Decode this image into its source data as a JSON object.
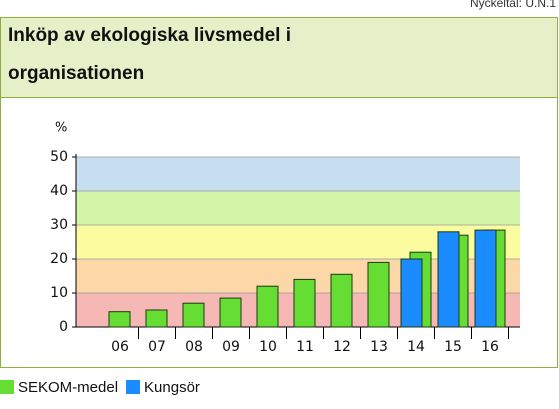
{
  "top_note": "Nyckeltal: U.N.1",
  "chart_data": {
    "type": "bar",
    "title": "Inköp av ekologiska livsmedel i organisationen",
    "y_label": "%",
    "categories": [
      "06",
      "07",
      "08",
      "09",
      "10",
      "11",
      "12",
      "13",
      "14",
      "15",
      "16"
    ],
    "series": [
      {
        "name": "SEKOM-medel",
        "color": "#66dd33",
        "values": [
          4.5,
          5,
          7,
          8.5,
          12,
          14,
          15.5,
          19,
          22,
          27,
          28.5
        ]
      },
      {
        "name": "Kungsör",
        "color": "#1a8cff",
        "values": [
          null,
          null,
          null,
          null,
          null,
          null,
          null,
          null,
          20,
          28,
          28.5
        ]
      }
    ],
    "ylim": [
      0,
      50
    ],
    "yticks": [
      0,
      10,
      20,
      30,
      40,
      50
    ],
    "bands": [
      {
        "from": 0,
        "to": 10,
        "color": "#f6b8b4"
      },
      {
        "from": 10,
        "to": 20,
        "color": "#fcd8a8"
      },
      {
        "from": 20,
        "to": 30,
        "color": "#fbfba0"
      },
      {
        "from": 30,
        "to": 40,
        "color": "#d3f5a8"
      },
      {
        "from": 40,
        "to": 50,
        "color": "#c8dff2"
      }
    ],
    "grid": true
  }
}
